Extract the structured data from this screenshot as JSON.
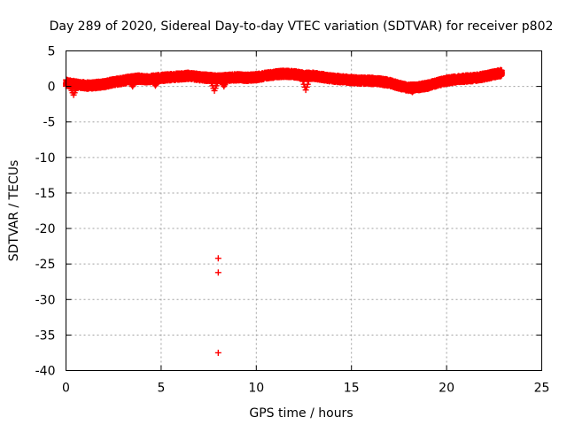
{
  "chart_data": {
    "type": "scatter",
    "title": "Day 289 of 2020, Sidereal Day-to-day VTEC variation (SDTVAR) for receiver p802",
    "xlabel": "GPS time / hours",
    "ylabel": "SDTVAR / TECUs",
    "xlim": [
      0,
      25
    ],
    "ylim": [
      -40,
      5
    ],
    "xticks": [
      0,
      5,
      10,
      15,
      20,
      25
    ],
    "yticks": [
      5,
      0,
      -5,
      -10,
      -15,
      -20,
      -25,
      -30,
      -35,
      -40
    ],
    "grid": true,
    "marker": "+",
    "color": "#ff0000",
    "series": [
      {
        "name": "SDTVAR",
        "trend": {
          "x": [
            0.0,
            0.3,
            0.5,
            0.8,
            1.2,
            1.6,
            2.0,
            2.5,
            3.0,
            3.4,
            3.8,
            4.2,
            4.6,
            5.0,
            5.5,
            6.0,
            6.5,
            7.0,
            7.5,
            8.0,
            8.5,
            9.0,
            9.5,
            10.0,
            10.5,
            11.0,
            11.5,
            12.0,
            12.5,
            13.0,
            13.5,
            14.0,
            14.5,
            15.0,
            15.5,
            16.0,
            16.5,
            17.0,
            17.5,
            18.0,
            18.5,
            19.0,
            19.5,
            20.0,
            20.5,
            21.0,
            21.5,
            22.0,
            22.5,
            22.9
          ],
          "y": [
            0.5,
            0.4,
            0.3,
            0.2,
            0.1,
            0.2,
            0.3,
            0.6,
            0.8,
            1.0,
            1.1,
            1.0,
            1.1,
            1.2,
            1.3,
            1.4,
            1.5,
            1.3,
            1.2,
            1.1,
            1.2,
            1.3,
            1.2,
            1.3,
            1.5,
            1.7,
            1.8,
            1.7,
            1.5,
            1.5,
            1.3,
            1.1,
            1.0,
            0.9,
            0.8,
            0.8,
            0.7,
            0.5,
            0.1,
            -0.2,
            -0.1,
            0.1,
            0.5,
            0.8,
            1.0,
            1.1,
            1.2,
            1.4,
            1.7,
            1.9
          ],
          "spread": 0.9
        },
        "dips": [
          {
            "x": 0.4,
            "y": -1.2
          },
          {
            "x": 3.5,
            "y": 0.0
          },
          {
            "x": 4.7,
            "y": 0.1
          },
          {
            "x": 7.8,
            "y": -0.6
          },
          {
            "x": 8.3,
            "y": 0.0
          },
          {
            "x": 12.6,
            "y": -0.5
          },
          {
            "x": 18.2,
            "y": -0.8
          }
        ],
        "outliers": [
          {
            "x": 8.0,
            "y": -24.2
          },
          {
            "x": 8.0,
            "y": -26.2
          },
          {
            "x": 8.0,
            "y": -37.5
          }
        ]
      }
    ]
  }
}
